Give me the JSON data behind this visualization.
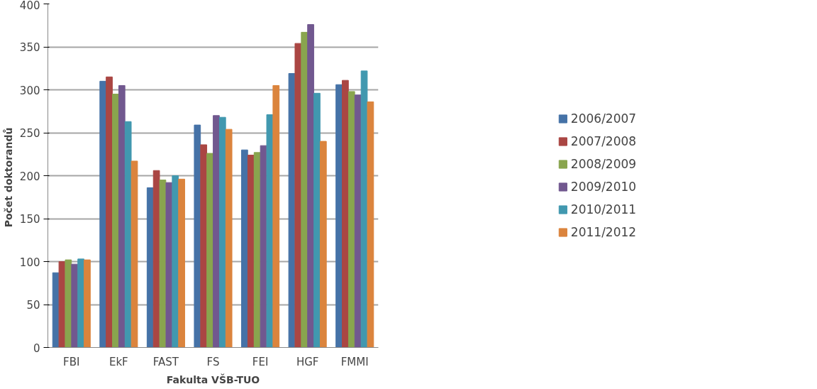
{
  "chart_data": {
    "type": "bar",
    "xlabel": "Fakulta VŠB-TUO",
    "ylabel": "Počet  doktorandů",
    "categories": [
      "FBI",
      "EkF",
      "FAST",
      "FS",
      "FEI",
      "HGF",
      "FMMI"
    ],
    "series": [
      {
        "name": "2006/2007",
        "color": "#4572a7",
        "values": [
          87,
          310,
          186,
          259,
          230,
          319,
          306
        ]
      },
      {
        "name": "2007/2008",
        "color": "#aa4643",
        "values": [
          100,
          315,
          206,
          236,
          224,
          354,
          311
        ]
      },
      {
        "name": "2008/2009",
        "color": "#89a54e",
        "values": [
          102,
          295,
          195,
          226,
          227,
          367,
          298
        ]
      },
      {
        "name": "2009/2010",
        "color": "#71588f",
        "values": [
          97,
          305,
          192,
          270,
          235,
          376,
          294
        ]
      },
      {
        "name": "2010/2011",
        "color": "#4198af",
        "values": [
          103,
          263,
          200,
          268,
          271,
          296,
          322
        ]
      },
      {
        "name": "2011/2012",
        "color": "#db843d",
        "values": [
          102,
          217,
          196,
          254,
          305,
          240,
          286
        ]
      }
    ],
    "ylim": [
      0,
      400
    ],
    "yticks": [
      0,
      50,
      100,
      150,
      200,
      250,
      300,
      350,
      400
    ],
    "grid": "y",
    "legend": "right"
  }
}
